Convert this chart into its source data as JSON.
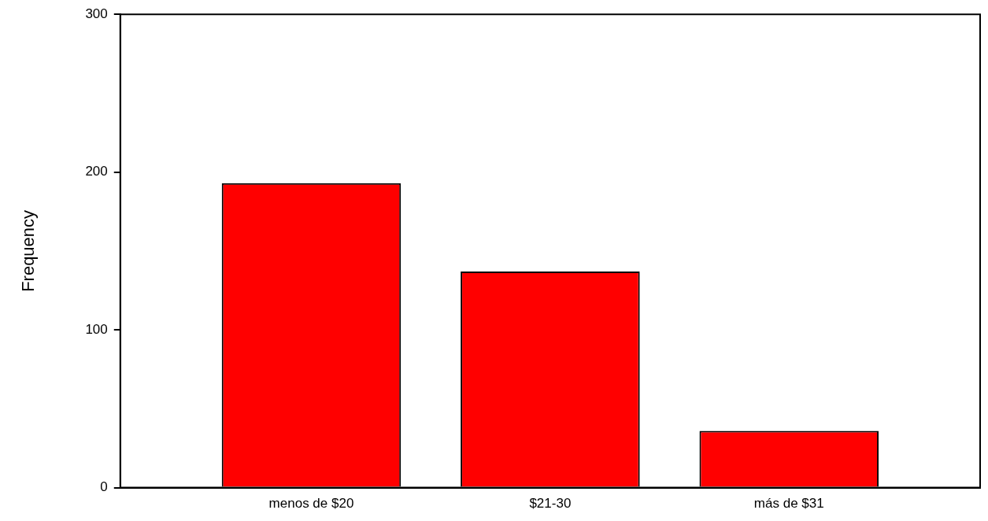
{
  "chart_data": {
    "type": "bar",
    "ylabel": "Frequency",
    "categories": [
      "menos de $20",
      "$21-30",
      "más de $31"
    ],
    "values": [
      193,
      137,
      36
    ],
    "color": "#ff0000",
    "ylim": [
      0,
      300
    ],
    "yticks": [
      0,
      100,
      200,
      300
    ]
  }
}
